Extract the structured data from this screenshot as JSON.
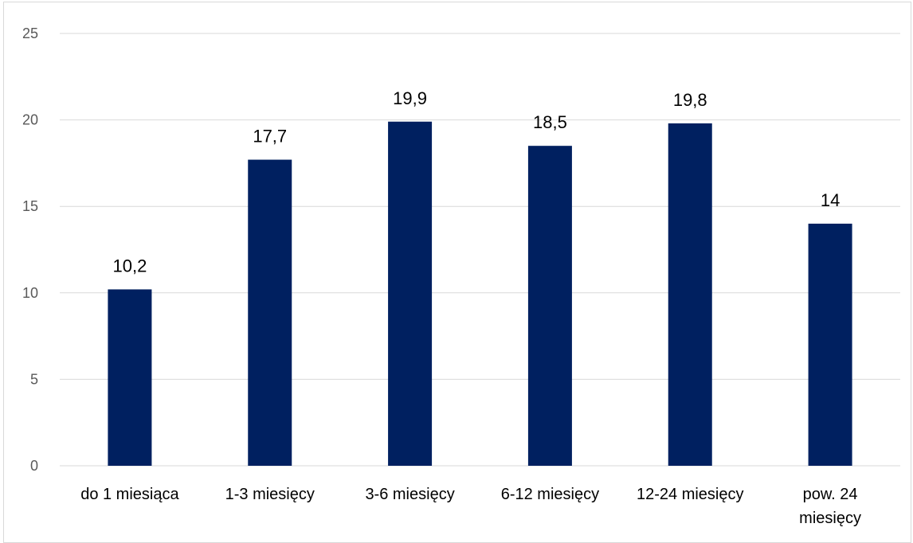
{
  "chart_data": {
    "type": "bar",
    "categories": [
      "do 1 miesiąca",
      "1-3 miesięcy",
      "3-6 miesięcy",
      "6-12 miesięcy",
      "12-24 miesięcy",
      "pow. 24 miesięcy"
    ],
    "category_lines": [
      [
        "do 1 miesiąca"
      ],
      [
        "1-3 miesięcy"
      ],
      [
        "3-6 miesięcy"
      ],
      [
        "6-12 miesięcy"
      ],
      [
        "12-24 miesięcy"
      ],
      [
        "pow. 24",
        "miesięcy"
      ]
    ],
    "values": [
      10.2,
      17.7,
      19.9,
      18.5,
      19.8,
      14
    ],
    "data_labels": [
      "10,2",
      "17,7",
      "19,9",
      "18,5",
      "19,8",
      "14"
    ],
    "yticks": [
      "0",
      "5",
      "10",
      "15",
      "20",
      "25"
    ],
    "ylim": [
      0,
      25
    ],
    "grid": true,
    "legend": "none",
    "colors": {
      "bar": "#002060",
      "grid": "#d9d9d9"
    }
  }
}
